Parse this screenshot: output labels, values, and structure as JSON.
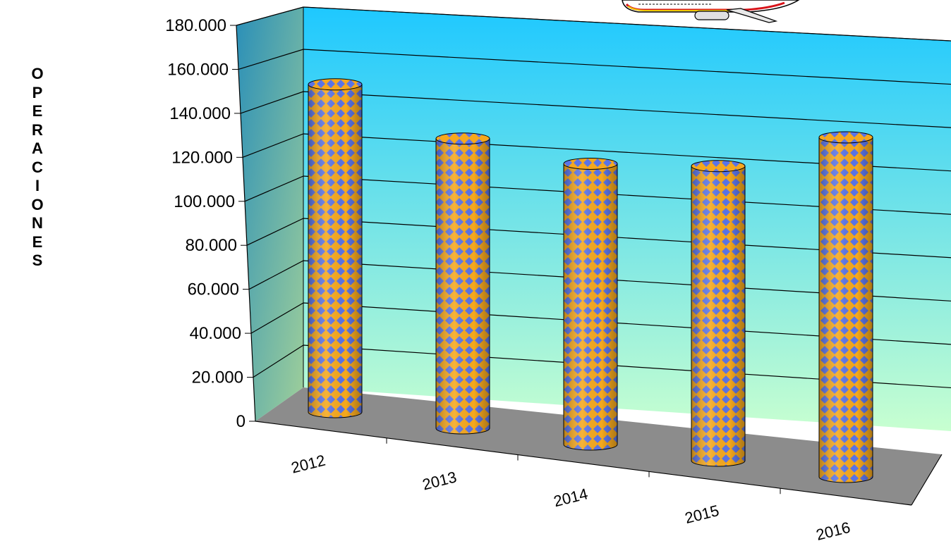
{
  "chart_data": {
    "type": "bar",
    "bar_shape": "cylinder",
    "title": "",
    "xlabel": "",
    "ylabel": "OPERACIONES",
    "categories": [
      "2012",
      "2013",
      "2014",
      "2015",
      "2016"
    ],
    "values": [
      158000,
      139000,
      134000,
      140000,
      161000
    ],
    "ylim": [
      0,
      180000
    ],
    "yticks": [
      "0",
      "20.000",
      "40.000",
      "60.000",
      "80.000",
      "100.000",
      "120.000",
      "140.000",
      "160.000",
      "180.000"
    ],
    "grid": true,
    "legend": "none",
    "colors": {
      "bar_primary": "#f5a81e",
      "bar_pattern": "#5a74e6",
      "wall_top": "#1ec8ff",
      "wall_bottom": "#c8ffd0",
      "floor": "#8c8c8c",
      "side_wall_top": "#3a9fc0",
      "side_wall_bottom": "#8ac9a0"
    },
    "decoration": "airplane-icon"
  }
}
